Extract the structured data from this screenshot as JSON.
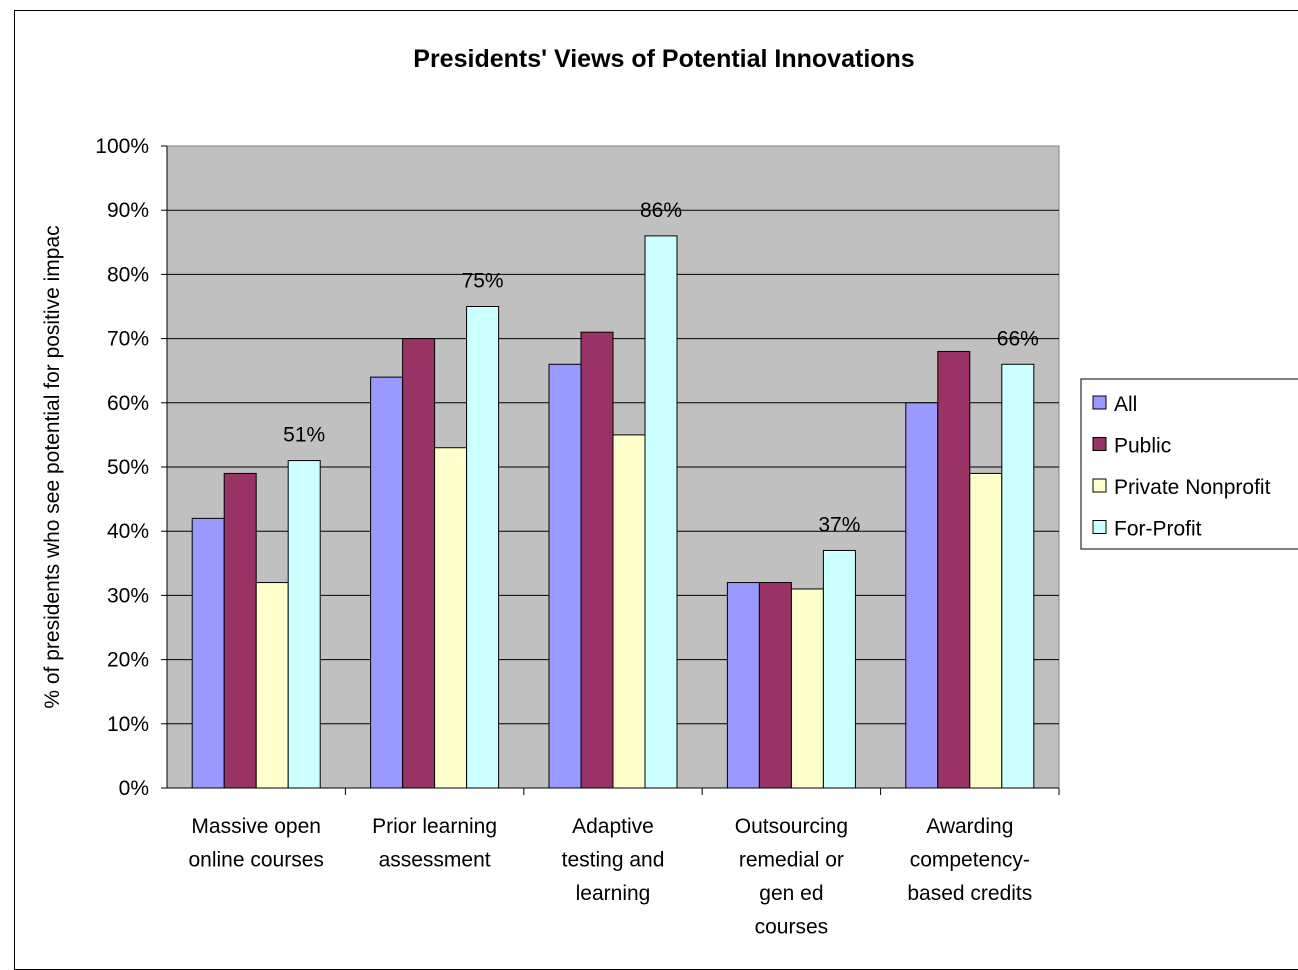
{
  "chart_data": {
    "type": "bar",
    "title": "Presidents' Views of Potential Innovations",
    "ylabel": "% of presidents who see potential for positive impact",
    "ylabel_visible": "% of presidents who see potential for positive impac",
    "xlabel": "",
    "ylim": [
      0,
      100
    ],
    "yticks": [
      "0%",
      "10%",
      "20%",
      "30%",
      "40%",
      "50%",
      "60%",
      "70%",
      "80%",
      "90%",
      "100%"
    ],
    "grid": true,
    "legend_position": "right",
    "categories": [
      [
        "Massive open",
        "online courses"
      ],
      [
        "Prior learning",
        "assessment"
      ],
      [
        "Adaptive",
        "testing and",
        "learning"
      ],
      [
        "Outsourcing",
        "remedial or",
        "gen ed",
        "courses"
      ],
      [
        "Awarding",
        "competency-",
        "based credits"
      ]
    ],
    "series": [
      {
        "name": "All",
        "color": "#9999ff",
        "values": [
          42,
          64,
          66,
          32,
          60
        ]
      },
      {
        "name": "Public",
        "color": "#993366",
        "values": [
          49,
          70,
          71,
          32,
          68
        ]
      },
      {
        "name": "Private Nonprofit",
        "color": "#ffffcc",
        "values": [
          32,
          53,
          55,
          31,
          49
        ]
      },
      {
        "name": "For-Profit",
        "color": "#ccffff",
        "values": [
          51,
          75,
          86,
          37,
          66
        ]
      }
    ],
    "data_labels": {
      "series": "For-Profit",
      "labels": [
        "51%",
        "75%",
        "86%",
        "37%",
        "66%"
      ]
    },
    "plot_background": "#c0c0c0"
  }
}
